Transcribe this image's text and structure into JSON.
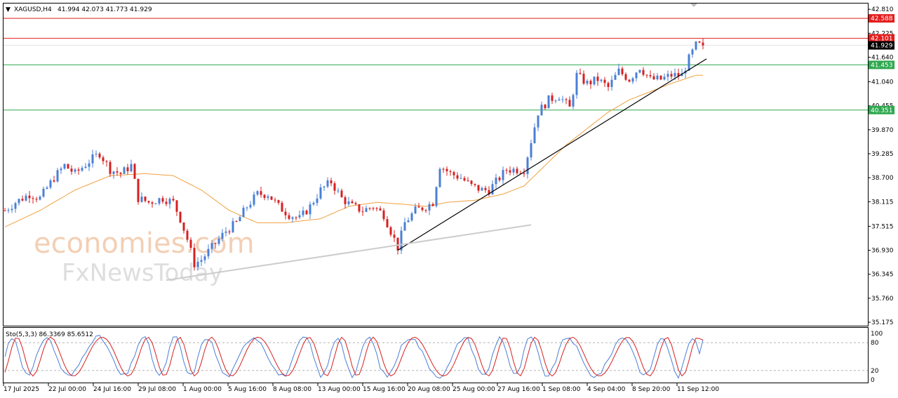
{
  "header": {
    "symbol": "XAGUSD,H4",
    "ohlc": "41.994 42.073 41.773 41.929"
  },
  "price_axis": {
    "ticks": [
      "42.810",
      "42.225",
      "41.640",
      "41.040",
      "40.455",
      "39.870",
      "39.285",
      "38.700",
      "38.115",
      "37.515",
      "36.930",
      "36.345",
      "35.760",
      "35.175"
    ],
    "labels": [
      {
        "text": "42.588",
        "value": 42.588,
        "color": "#e31d1d"
      },
      {
        "text": "42.101",
        "value": 42.101,
        "color": "#e31d1d"
      },
      {
        "text": "41.929",
        "value": 41.929,
        "color": "#000000"
      },
      {
        "text": "41.453",
        "value": 41.453,
        "color": "#2fa84f"
      },
      {
        "text": "40.351",
        "value": 40.351,
        "color": "#2fa84f"
      }
    ]
  },
  "levels": [
    {
      "value": 42.588,
      "color": "#e31d1d"
    },
    {
      "value": 42.101,
      "color": "#e31d1d"
    },
    {
      "value": 41.453,
      "color": "#2fa84f"
    },
    {
      "value": 40.351,
      "color": "#2fa84f"
    }
  ],
  "time_axis": [
    "17 Jul 2025",
    "22 Jul 00:00",
    "24 Jul 16:00",
    "29 Jul 08:00",
    "1 Aug 00:00",
    "5 Aug 16:00",
    "8 Aug 08:00",
    "13 Aug 00:00",
    "15 Aug 16:00",
    "20 Aug 08:00",
    "25 Aug 00:00",
    "27 Aug 16:00",
    "1 Sep 08:00",
    "4 Sep 04:00",
    "8 Sep 20:00",
    "11 Sep 12:00"
  ],
  "stochastic": {
    "label": "Sto(5,3,3) 86.3369 85.6512",
    "ticks": [
      "100",
      "80",
      "20",
      "0"
    ]
  },
  "watermark": {
    "line1": "economies.com",
    "line2": "FxNewsToday"
  },
  "colors": {
    "bull": "#4a7fd6",
    "bear": "#d62020",
    "ma": "#f0a040",
    "trend": "#000000",
    "trend_gray": "#cccccc",
    "stoch_main": "#4a7fd6",
    "stoch_signal": "#d62020"
  },
  "chart_data": {
    "type": "candlestick",
    "symbol": "XAGUSD",
    "timeframe": "H4",
    "ylim": [
      35.175,
      42.9
    ],
    "x_labels": [
      "17 Jul 2025",
      "22 Jul 00:00",
      "24 Jul 16:00",
      "29 Jul 08:00",
      "1 Aug 00:00",
      "5 Aug 16:00",
      "8 Aug 08:00",
      "13 Aug 00:00",
      "15 Aug 16:00",
      "20 Aug 08:00",
      "25 Aug 00:00",
      "27 Aug 16:00",
      "1 Sep 08:00",
      "4 Sep 04:00",
      "8 Sep 20:00",
      "11 Sep 12:00"
    ],
    "close_path": [
      [
        0,
        37.9
      ],
      [
        3,
        38.1
      ],
      [
        7,
        38.3
      ],
      [
        10,
        38.2
      ],
      [
        14,
        38.7
      ],
      [
        17,
        39.0
      ],
      [
        20,
        38.8
      ],
      [
        24,
        39.1
      ],
      [
        27,
        39.3
      ],
      [
        30,
        38.9
      ],
      [
        33,
        38.8
      ],
      [
        36,
        39.0
      ],
      [
        38,
        38.2
      ],
      [
        41,
        38.1
      ],
      [
        45,
        38.2
      ],
      [
        48,
        38.1
      ],
      [
        50,
        37.7
      ],
      [
        52,
        37.2
      ],
      [
        54,
        36.6
      ],
      [
        56,
        36.7
      ],
      [
        58,
        36.9
      ],
      [
        60,
        37.1
      ],
      [
        63,
        37.4
      ],
      [
        66,
        37.6
      ],
      [
        69,
        38.0
      ],
      [
        72,
        38.3
      ],
      [
        75,
        38.3
      ],
      [
        78,
        38.0
      ],
      [
        81,
        37.8
      ],
      [
        84,
        37.7
      ],
      [
        87,
        38.0
      ],
      [
        90,
        38.4
      ],
      [
        93,
        38.6
      ],
      [
        96,
        38.2
      ],
      [
        99,
        38.0
      ],
      [
        102,
        37.9
      ],
      [
        105,
        38.0
      ],
      [
        108,
        37.8
      ],
      [
        110,
        37.4
      ],
      [
        112,
        37.0
      ],
      [
        114,
        37.6
      ],
      [
        117,
        37.9
      ],
      [
        120,
        38.0
      ],
      [
        122,
        38.1
      ],
      [
        124,
        39.0
      ],
      [
        127,
        38.8
      ],
      [
        130,
        38.7
      ],
      [
        133,
        38.5
      ],
      [
        136,
        38.4
      ],
      [
        138,
        38.4
      ],
      [
        140,
        38.6
      ],
      [
        143,
        38.9
      ],
      [
        146,
        38.9
      ],
      [
        148,
        38.9
      ],
      [
        150,
        39.6
      ],
      [
        152,
        40.3
      ],
      [
        155,
        40.6
      ],
      [
        158,
        40.7
      ],
      [
        161,
        40.4
      ],
      [
        163,
        41.2
      ],
      [
        166,
        41.0
      ],
      [
        169,
        41.1
      ],
      [
        172,
        40.9
      ],
      [
        175,
        41.3
      ],
      [
        178,
        41.1
      ],
      [
        181,
        41.4
      ],
      [
        184,
        41.1
      ],
      [
        187,
        41.1
      ],
      [
        190,
        41.2
      ],
      [
        193,
        41.2
      ],
      [
        195,
        41.6
      ],
      [
        197,
        41.93
      ]
    ],
    "ma_path": [
      [
        0,
        37.5
      ],
      [
        10,
        37.9
      ],
      [
        20,
        38.4
      ],
      [
        30,
        38.75
      ],
      [
        40,
        38.8
      ],
      [
        48,
        38.75
      ],
      [
        56,
        38.4
      ],
      [
        64,
        37.9
      ],
      [
        72,
        37.6
      ],
      [
        80,
        37.6
      ],
      [
        90,
        37.7
      ],
      [
        98,
        38.0
      ],
      [
        106,
        38.1
      ],
      [
        114,
        38.05
      ],
      [
        120,
        38.0
      ],
      [
        126,
        38.1
      ],
      [
        134,
        38.15
      ],
      [
        142,
        38.3
      ],
      [
        148,
        38.5
      ],
      [
        154,
        39.0
      ],
      [
        160,
        39.5
      ],
      [
        166,
        39.9
      ],
      [
        172,
        40.3
      ],
      [
        178,
        40.6
      ],
      [
        184,
        40.8
      ],
      [
        190,
        41.0
      ],
      [
        197,
        41.2
      ]
    ],
    "trendlines": [
      {
        "from": [
          112,
          36.93
        ],
        "to": [
          200,
          41.6
        ],
        "color": "#000000"
      },
      {
        "from": [
          46,
          36.2
        ],
        "to": [
          150,
          37.55
        ],
        "color": "#cccccc"
      }
    ],
    "levels": [
      42.588,
      42.101,
      41.453,
      40.351
    ],
    "stochastic": {
      "main": 86.3369,
      "signal": 85.6512,
      "levels": [
        80,
        20
      ]
    }
  }
}
